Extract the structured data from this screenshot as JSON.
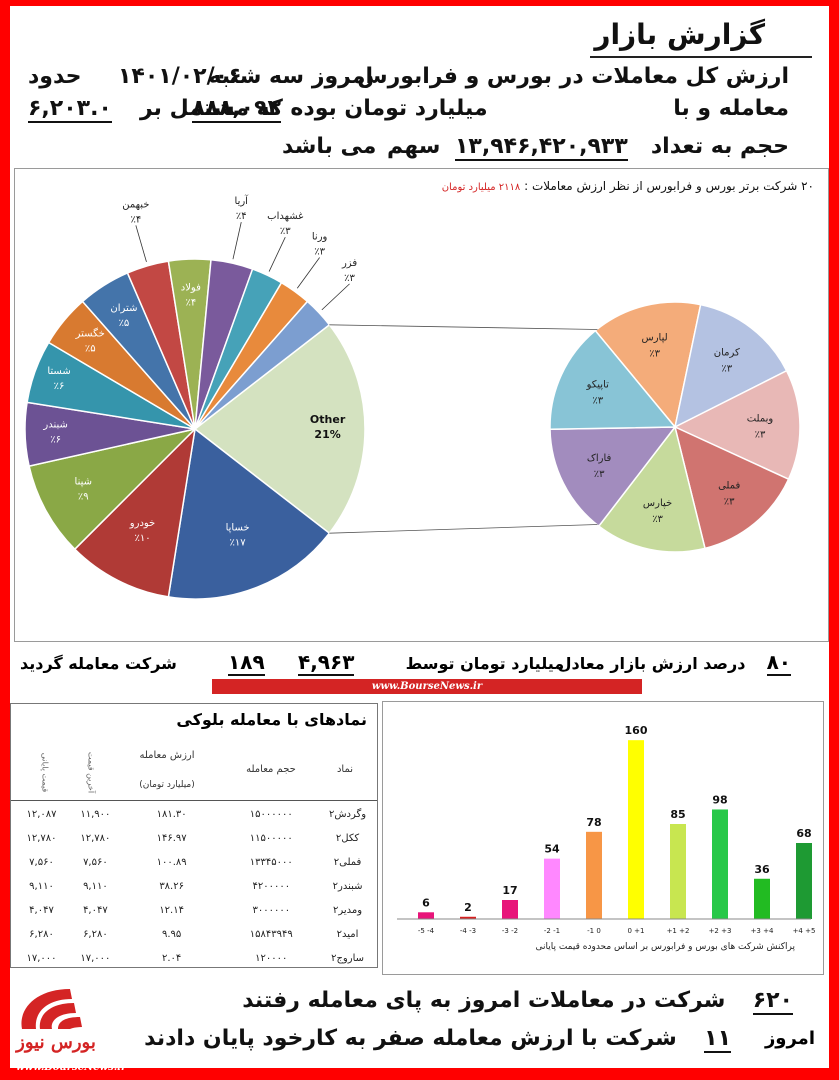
{
  "header": {
    "title": "گزارش بازار",
    "line1_a": "ارزش کل معاملات در بورس و فرابورس",
    "line1_b": "امروز",
    "line1_c": "سه شنبه",
    "line1_date": "۱۴۰۱/۰۲/۰۶",
    "line1_d": "حدود",
    "line2_value": "۶,۲۰۳.۰",
    "line2_a": "میلیارد تومان بوده که مشتمل بر",
    "line2_count": "۸۸۸,۰۹۳",
    "line2_b": "معامله و با",
    "line3_a": "حجم به تعداد",
    "line3_volume": "۱۳,۹۴۶,۴۲۰,۹۳۳",
    "line3_b": "سهم",
    "line3_c": "می باشد"
  },
  "colors": {
    "frame": "#ff0000",
    "accent_red": "#d42424"
  },
  "chart_data": [
    {
      "type": "pie",
      "title": "۲۰ شرکت برتر بورس و فرابورس از نظر ارزش معاملات :",
      "title_value": "۲۱۱۸ میلیارد تومان",
      "slices": [
        {
          "label": "Other",
          "value_label": "21%",
          "value": 21,
          "color": "#d4e2c0"
        },
        {
          "label": "خساپا",
          "value_label": "٪۱۷",
          "value": 17,
          "color": "#3a609e"
        },
        {
          "label": "خودرو",
          "value_label": "٪۱۰",
          "value": 10,
          "color": "#b03a36"
        },
        {
          "label": "شپنا",
          "value_label": "٪۹",
          "value": 9,
          "color": "#8aa846"
        },
        {
          "label": "شبندر",
          "value_label": "٪۶",
          "value": 6,
          "color": "#6c5294"
        },
        {
          "label": "شستا",
          "value_label": "٪۶",
          "value": 6,
          "color": "#3595ac"
        },
        {
          "label": "خگستر",
          "value_label": "٪۵",
          "value": 5,
          "color": "#d87a30"
        },
        {
          "label": "شتران",
          "value_label": "٪۵",
          "value": 5,
          "color": "#4474aa"
        },
        {
          "label": "خبهمن",
          "value_label": "٪۴",
          "value": 4,
          "color": "#c24844"
        },
        {
          "label": "فولاد",
          "value_label": "٪۴",
          "value": 4,
          "color": "#9cb254"
        },
        {
          "label": "آریا",
          "value_label": "٪۴",
          "value": 4,
          "color": "#7a5a9c"
        },
        {
          "label": "غشهداب",
          "value_label": "٪۳",
          "value": 3,
          "color": "#46a2b8"
        },
        {
          "label": "ورنا",
          "value_label": "٪۳",
          "value": 3,
          "color": "#e88a3c"
        },
        {
          "label": "فزر",
          "value_label": "٪۳",
          "value": 3,
          "color": "#7c9ed0"
        }
      ],
      "breakdown": {
        "of": "Other",
        "slices": [
          {
            "label": "لپارس",
            "value_label": "٪۳",
            "value": 3,
            "color": "#f4ac7a"
          },
          {
            "label": "کرمان",
            "value_label": "٪۳",
            "value": 3,
            "color": "#b4c2e2"
          },
          {
            "label": "وبملت",
            "value_label": "٪۳",
            "value": 3,
            "color": "#e8b8b6"
          },
          {
            "label": "فملی",
            "value_label": "٪۳",
            "value": 3,
            "color": "#d07470"
          },
          {
            "label": "خپارس",
            "value_label": "٪۳",
            "value": 3,
            "color": "#c6da9c"
          },
          {
            "label": "فاراک",
            "value_label": "٪۳",
            "value": 3,
            "color": "#a28cbe"
          },
          {
            "label": "تاپیکو",
            "value_label": "٪۳",
            "value": 3,
            "color": "#88c4d6"
          }
        ]
      }
    },
    {
      "type": "bar",
      "title": "پراکنش شرکت های بورس و فرابورس بر اساس محدوده قیمت پایانی",
      "categories": [
        "-5 -4",
        "-4 -3",
        "-3 -2",
        "-2 -1",
        "-1 0",
        "0 +1",
        "+1 +2",
        "+2 +3",
        "+3 +4",
        "+4 +5"
      ],
      "values": [
        6,
        2,
        17,
        54,
        78,
        160,
        85,
        98,
        36,
        68
      ],
      "colors": [
        "#e8157a",
        "#d62020",
        "#e8157a",
        "#ff88ff",
        "#f79646",
        "#ffff00",
        "#c8e650",
        "#27c848",
        "#22bb22",
        "#1e9a33"
      ],
      "ylim": [
        0,
        170
      ],
      "grid": false,
      "legend": "none"
    }
  ],
  "market_summary": {
    "percent": "۸۰",
    "percent_label": "درصد ارزش بازار معادل",
    "value": "۴,۹۶۳",
    "value_label": "میلیارد تومان توسط",
    "count": "۱۸۹",
    "count_label": "شرکت معامله گردید",
    "source": "www.BourseNews.ir"
  },
  "block_table": {
    "title": "نمادهای با معامله بلوکی",
    "headers": {
      "symbol": "نماد",
      "volume": "حجم معامله",
      "value": "ارزش معامله",
      "value_unit": "(میلیارد تومان)",
      "last_price": "آخرین قیمت",
      "final_price": "قیمت پایانی"
    },
    "rows": [
      {
        "symbol": "وگردش۲",
        "volume": "۱۵۰۰۰۰۰۰",
        "value": "۱۸۱.۳۰",
        "last": "۱۱,۹۰۰",
        "final": "۱۲,۰۸۷"
      },
      {
        "symbol": "ککل۲",
        "volume": "۱۱۵۰۰۰۰۰",
        "value": "۱۴۶.۹۷",
        "last": "۱۲,۷۸۰",
        "final": "۱۲,۷۸۰"
      },
      {
        "symbol": "فملی۲",
        "volume": "۱۳۳۴۵۰۰۰",
        "value": "۱۰۰.۸۹",
        "last": "۷,۵۶۰",
        "final": "۷,۵۶۰"
      },
      {
        "symbol": "شبندر۲",
        "volume": "۴۲۰۰۰۰۰",
        "value": "۳۸.۲۶",
        "last": "۹,۱۱۰",
        "final": "۹,۱۱۰"
      },
      {
        "symbol": "ومدیر۲",
        "volume": "۳۰۰۰۰۰۰",
        "value": "۱۲.۱۴",
        "last": "۴,۰۴۷",
        "final": "۴,۰۴۷"
      },
      {
        "symbol": "امید۲",
        "volume": "۱۵۸۴۳۹۴۹",
        "value": "۹.۹۵",
        "last": "۶,۲۸۰",
        "final": "۶,۲۸۰"
      },
      {
        "symbol": "ساروج۲",
        "volume": "۱۲۰۰۰۰",
        "value": "۲.۰۴",
        "last": "۱۷,۰۰۰",
        "final": "۱۷,۰۰۰"
      }
    ]
  },
  "footer": {
    "traded_count": "۶۲۰",
    "traded_text": "شرکت در معاملات امروز به پای معامله رفتند",
    "today": "امروز",
    "zero_count": "۱۱",
    "zero_text": "شرکت با ارزش معامله صفر به کارخود پایان دادند",
    "logo_text": "بورس نیوز",
    "source": "www.BourseNews.ir"
  }
}
